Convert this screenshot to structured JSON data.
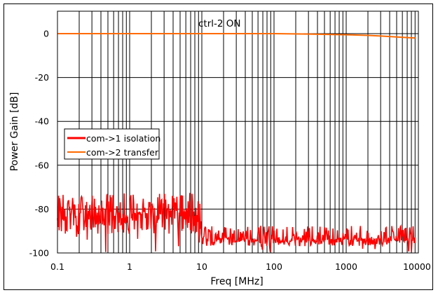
{
  "chart_data": {
    "type": "line",
    "title": "",
    "annotation": "ctrl-2 ON",
    "xlabel": "Freq [MHz]",
    "ylabel": "Power Gain [dB]",
    "xscale": "log",
    "xlim": [
      0.1,
      10000
    ],
    "ylim": [
      -100,
      10
    ],
    "x_ticks": [
      "0.1",
      "1",
      "10",
      "100",
      "1000",
      "10000"
    ],
    "y_ticks": [
      "0",
      "-20",
      "-40",
      "-60",
      "-80",
      "-100"
    ],
    "grid": true,
    "legend_position": "center-left",
    "series": [
      {
        "name": "com->1 isolation",
        "color": "#ff0000",
        "line_width": 3,
        "x": [
          0.1,
          0.2,
          0.5,
          1,
          2,
          5,
          9.5,
          10,
          20,
          50,
          100,
          200,
          500,
          1000,
          2000,
          5000,
          9000
        ],
        "values": [
          -80,
          -79,
          -81,
          -80,
          -80,
          -79,
          -80,
          -91,
          -93,
          -93,
          -93,
          -92,
          -93,
          -93,
          -93,
          -92,
          -90
        ],
        "noise_ranges": [
          {
            "from": 0.1,
            "to": 9.8,
            "min": -100,
            "max": -70,
            "mean": -81
          },
          {
            "from": 9.8,
            "to": 9000,
            "min": -100,
            "max": -86,
            "mean": -93
          }
        ]
      },
      {
        "name": "com->2 transfer",
        "color": "#ff6a00",
        "line_width": 2,
        "x": [
          0.1,
          1,
          10,
          100,
          300,
          1000,
          2000,
          3000,
          5000,
          7000,
          9000
        ],
        "values": [
          0,
          0,
          0,
          0,
          -0.2,
          -0.5,
          -0.8,
          -1.1,
          -1.5,
          -1.8,
          -2.0
        ]
      }
    ]
  },
  "legend": {
    "items": [
      {
        "label": "com->1 isolation",
        "color": "#ff0000"
      },
      {
        "label": "com->2 transfer",
        "color": "#ff6a00"
      }
    ]
  }
}
